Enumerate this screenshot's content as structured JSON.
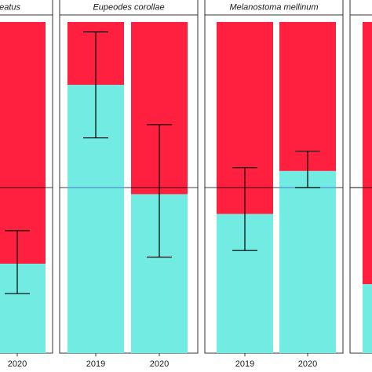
{
  "chart_data": {
    "type": "bar",
    "stacked": true,
    "colors": {
      "lower": "#72ECE3",
      "upper": "#FF2040",
      "refline": "#000000",
      "refline_overlay": "#4A78C8",
      "errorbar": "#000000"
    },
    "ylim": [
      0,
      1
    ],
    "reference_line": 0.5,
    "panels": [
      {
        "title": "…eatus",
        "categories": [
          "2020"
        ],
        "values": [
          0.27
        ],
        "error_low": [
          0.18
        ],
        "error_high": [
          0.37
        ]
      },
      {
        "title": "Eupeodes corollae",
        "categories": [
          "2019",
          "2020"
        ],
        "values": [
          0.81,
          0.48
        ],
        "error_low": [
          0.65,
          0.29
        ],
        "error_high": [
          0.97,
          0.69
        ]
      },
      {
        "title": "Melanostoma mellinum",
        "categories": [
          "2019",
          "2020"
        ],
        "values": [
          0.42,
          0.55
        ],
        "error_low": [
          0.31,
          0.5
        ],
        "error_high": [
          0.56,
          0.61
        ]
      },
      {
        "title": "",
        "categories": [],
        "values": [],
        "error_low": [],
        "error_high": []
      }
    ]
  }
}
